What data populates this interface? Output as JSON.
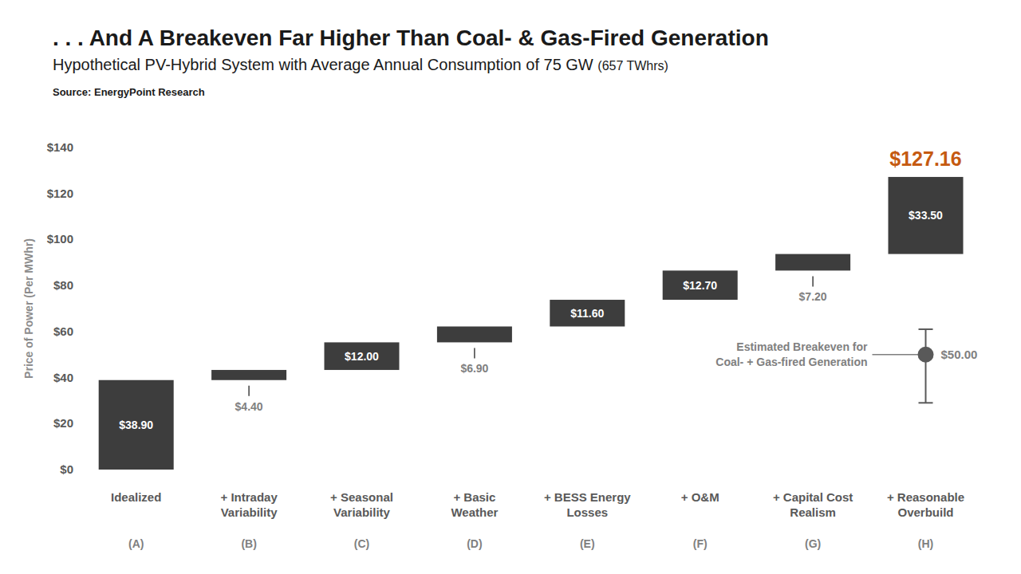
{
  "chart_data": {
    "type": "waterfall",
    "title": ". . . And A Breakeven Far Higher Than Coal- & Gas-Fired Generation",
    "subtitle": "Hypothetical PV-Hybrid System with Average Annual Consumption of 75 GW",
    "subtitle_note": "(657 TWhrs)",
    "source": "Source: EnergyPoint Research",
    "y_label": "Price of Power (Per MWhr)",
    "categories": [
      "Idealized",
      "+ Intraday Variability",
      "+ Seasonal Variability",
      "+ Basic Weather",
      "+ BESS Energy Losses",
      "+ O&M",
      "+ Capital Cost Realism",
      "+ Reasonable Overbuild"
    ],
    "sublabels": [
      "(A)",
      "(B)",
      "(C)",
      "(D)",
      "(E)",
      "(F)",
      "(G)",
      "(H)"
    ],
    "values": [
      38.9,
      4.4,
      12.0,
      6.9,
      11.6,
      12.7,
      7.2,
      33.5
    ],
    "value_labels": [
      "$38.90",
      "$4.40",
      "$12.00",
      "$6.90",
      "$11.60",
      "$12.70",
      "$7.20",
      "$33.50"
    ],
    "color": "#3d3d3d",
    "data_labels": true,
    "grid": false,
    "ylim": [
      0,
      140
    ],
    "yticks": [
      {
        "value": 0,
        "label": "$0"
      },
      {
        "value": 20,
        "label": "$20"
      },
      {
        "value": 40,
        "label": "$40"
      },
      {
        "value": 60,
        "label": "$60"
      },
      {
        "value": 80,
        "label": "$80"
      },
      {
        "value": 100,
        "label": "$100"
      },
      {
        "value": 120,
        "label": "$120"
      },
      {
        "value": 140,
        "label": "$140"
      }
    ],
    "total": {
      "value": 127.16,
      "label": "$127.16",
      "color": "#c55a11"
    },
    "reference": {
      "lines": [
        "Estimated Breakeven for",
        "Coal- + Gas-fired Generation"
      ],
      "value": 50,
      "value_label": "$50.00",
      "low": 29,
      "high": 61
    }
  }
}
